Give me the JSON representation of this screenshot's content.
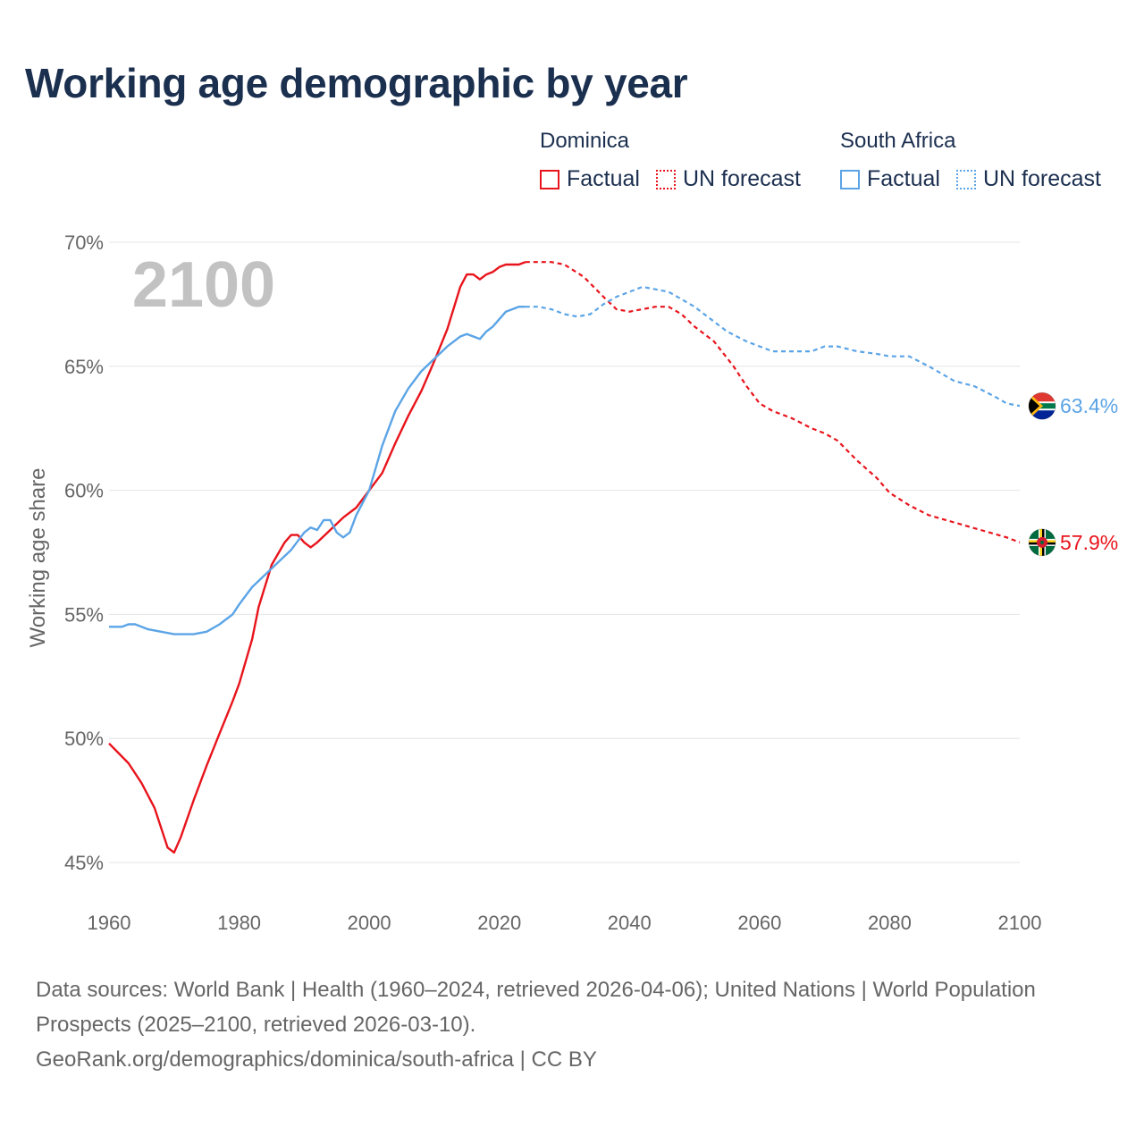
{
  "title": "Working age demographic by year",
  "legend": {
    "groups": [
      {
        "name": "Dominica",
        "factual": "Factual",
        "forecast": "UN forecast",
        "color": "#e8141c"
      },
      {
        "name": "South Africa",
        "factual": "Factual",
        "forecast": "UN forecast",
        "color": "#5ba4e6"
      }
    ]
  },
  "footer": {
    "sources": "Data sources: World Bank | Health (1960–2024, retrieved 2026-04-06); United Nations | World Population Prospects (2025–2100, retrieved 2026-03-10).",
    "url": "GeoRank.org/demographics/dominica/south-africa | CC BY"
  },
  "chart_data": {
    "type": "line",
    "title": "Working age demographic by year",
    "xlabel": "",
    "ylabel": "Working age share",
    "xlim": [
      1960,
      2100
    ],
    "ylim": [
      45,
      70
    ],
    "x_ticks": [
      1960,
      1980,
      2000,
      2020,
      2040,
      2060,
      2080,
      2100
    ],
    "y_ticks": [
      45,
      50,
      55,
      60,
      65,
      70
    ],
    "y_tick_labels": [
      "45%",
      "50%",
      "55%",
      "60%",
      "65%",
      "70%"
    ],
    "year_overlay": "2100",
    "forecast_start": 2024,
    "grid": true,
    "series": [
      {
        "name": "Dominica",
        "color": "#e8141c",
        "end_label": "57.9%",
        "flag": "dominica",
        "points": [
          [
            1960,
            49.8
          ],
          [
            1963,
            49.0
          ],
          [
            1965,
            48.2
          ],
          [
            1967,
            47.2
          ],
          [
            1969,
            45.6
          ],
          [
            1970,
            45.4
          ],
          [
            1971,
            46.0
          ],
          [
            1973,
            47.5
          ],
          [
            1975,
            48.9
          ],
          [
            1977,
            50.2
          ],
          [
            1979,
            51.5
          ],
          [
            1980,
            52.2
          ],
          [
            1982,
            54.0
          ],
          [
            1983,
            55.3
          ],
          [
            1985,
            57.0
          ],
          [
            1987,
            57.9
          ],
          [
            1988,
            58.2
          ],
          [
            1989,
            58.2
          ],
          [
            1990,
            57.9
          ],
          [
            1991,
            57.7
          ],
          [
            1992,
            57.9
          ],
          [
            1994,
            58.4
          ],
          [
            1996,
            58.9
          ],
          [
            1998,
            59.3
          ],
          [
            2000,
            60.0
          ],
          [
            2002,
            60.7
          ],
          [
            2004,
            61.9
          ],
          [
            2006,
            63.0
          ],
          [
            2008,
            64.0
          ],
          [
            2010,
            65.2
          ],
          [
            2012,
            66.5
          ],
          [
            2014,
            68.2
          ],
          [
            2015,
            68.7
          ],
          [
            2016,
            68.7
          ],
          [
            2017,
            68.5
          ],
          [
            2018,
            68.7
          ],
          [
            2019,
            68.8
          ],
          [
            2020,
            69.0
          ],
          [
            2021,
            69.1
          ],
          [
            2022,
            69.1
          ],
          [
            2023,
            69.1
          ],
          [
            2024,
            69.2
          ],
          [
            2026,
            69.2
          ],
          [
            2028,
            69.2
          ],
          [
            2030,
            69.1
          ],
          [
            2033,
            68.6
          ],
          [
            2036,
            67.8
          ],
          [
            2038,
            67.3
          ],
          [
            2040,
            67.2
          ],
          [
            2042,
            67.3
          ],
          [
            2044,
            67.4
          ],
          [
            2046,
            67.4
          ],
          [
            2048,
            67.1
          ],
          [
            2050,
            66.6
          ],
          [
            2053,
            66.0
          ],
          [
            2056,
            65.0
          ],
          [
            2058,
            64.2
          ],
          [
            2060,
            63.5
          ],
          [
            2062,
            63.2
          ],
          [
            2065,
            62.9
          ],
          [
            2068,
            62.5
          ],
          [
            2070,
            62.3
          ],
          [
            2072,
            62.0
          ],
          [
            2075,
            61.2
          ],
          [
            2078,
            60.5
          ],
          [
            2080,
            59.9
          ],
          [
            2083,
            59.4
          ],
          [
            2086,
            59.0
          ],
          [
            2090,
            58.7
          ],
          [
            2094,
            58.4
          ],
          [
            2098,
            58.1
          ],
          [
            2100,
            57.9
          ]
        ]
      },
      {
        "name": "South Africa",
        "color": "#5ba4e6",
        "end_label": "63.4%",
        "flag": "south-africa",
        "points": [
          [
            1960,
            54.5
          ],
          [
            1962,
            54.5
          ],
          [
            1963,
            54.6
          ],
          [
            1964,
            54.6
          ],
          [
            1966,
            54.4
          ],
          [
            1968,
            54.3
          ],
          [
            1970,
            54.2
          ],
          [
            1972,
            54.2
          ],
          [
            1973,
            54.2
          ],
          [
            1975,
            54.3
          ],
          [
            1977,
            54.6
          ],
          [
            1979,
            55.0
          ],
          [
            1980,
            55.4
          ],
          [
            1982,
            56.1
          ],
          [
            1984,
            56.6
          ],
          [
            1986,
            57.1
          ],
          [
            1988,
            57.6
          ],
          [
            1990,
            58.3
          ],
          [
            1991,
            58.5
          ],
          [
            1992,
            58.4
          ],
          [
            1993,
            58.8
          ],
          [
            1994,
            58.8
          ],
          [
            1995,
            58.3
          ],
          [
            1996,
            58.1
          ],
          [
            1997,
            58.3
          ],
          [
            1998,
            59.0
          ],
          [
            2000,
            60.0
          ],
          [
            2002,
            61.8
          ],
          [
            2004,
            63.2
          ],
          [
            2006,
            64.1
          ],
          [
            2008,
            64.8
          ],
          [
            2010,
            65.3
          ],
          [
            2012,
            65.8
          ],
          [
            2014,
            66.2
          ],
          [
            2015,
            66.3
          ],
          [
            2017,
            66.1
          ],
          [
            2018,
            66.4
          ],
          [
            2019,
            66.6
          ],
          [
            2021,
            67.2
          ],
          [
            2023,
            67.4
          ],
          [
            2024,
            67.4
          ],
          [
            2026,
            67.4
          ],
          [
            2028,
            67.3
          ],
          [
            2030,
            67.1
          ],
          [
            2032,
            67.0
          ],
          [
            2034,
            67.1
          ],
          [
            2036,
            67.5
          ],
          [
            2038,
            67.8
          ],
          [
            2040,
            68.0
          ],
          [
            2042,
            68.2
          ],
          [
            2044,
            68.1
          ],
          [
            2046,
            68.0
          ],
          [
            2048,
            67.7
          ],
          [
            2050,
            67.4
          ],
          [
            2052,
            67.0
          ],
          [
            2055,
            66.4
          ],
          [
            2058,
            66.0
          ],
          [
            2060,
            65.8
          ],
          [
            2062,
            65.6
          ],
          [
            2065,
            65.6
          ],
          [
            2068,
            65.6
          ],
          [
            2070,
            65.8
          ],
          [
            2072,
            65.8
          ],
          [
            2075,
            65.6
          ],
          [
            2078,
            65.5
          ],
          [
            2080,
            65.4
          ],
          [
            2083,
            65.4
          ],
          [
            2086,
            65.0
          ],
          [
            2090,
            64.4
          ],
          [
            2093,
            64.2
          ],
          [
            2096,
            63.8
          ],
          [
            2098,
            63.5
          ],
          [
            2100,
            63.4
          ]
        ]
      }
    ]
  }
}
